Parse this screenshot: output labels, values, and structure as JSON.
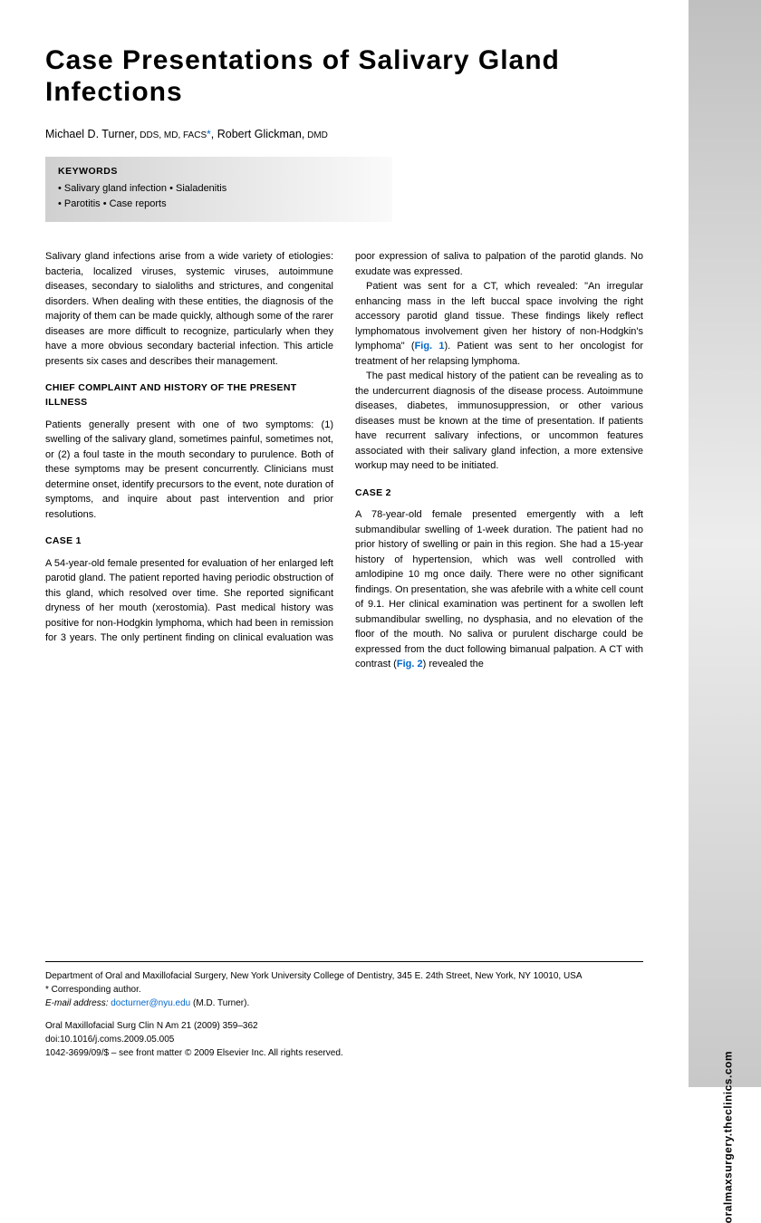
{
  "title": "Case Presentations of Salivary Gland Infections",
  "authors_line": "Michael D. Turner, DDS, MD, FACS*, Robert Glickman, DMD",
  "author1_name": "Michael D. Turner,",
  "author1_suffix": " DDS, MD, FACS",
  "author2_name": ", Robert Glickman,",
  "author2_suffix": " DMD",
  "keywords": {
    "title": "KEYWORDS",
    "line1": "• Salivary gland infection • Sialadenitis",
    "line2": "• Parotitis • Case reports"
  },
  "intro": "Salivary gland infections arise from a wide variety of etiologies: bacteria, localized viruses, systemic viruses, autoimmune diseases, secondary to sialoliths and strictures, and congenital disorders. When dealing with these entities, the diagnosis of the majority of them can be made quickly, although some of the rarer diseases are more difficult to recognize, particularly when they have a more obvious secondary bacterial infection. This article presents six cases and describes their management.",
  "section1_head": "CHIEF COMPLAINT AND HISTORY OF THE PRESENT ILLNESS",
  "section1_p1": "Patients generally present with one of two symptoms: (1) swelling of the salivary gland, sometimes painful, sometimes not, or (2) a foul taste in the mouth secondary to purulence. Both of these symptoms may be present concurrently. Clinicians must determine onset, identify precursors to the event, note duration of symptoms, and inquire about past intervention and prior resolutions.",
  "case1_head": "CASE 1",
  "case1_p1": "A 54-year-old female presented for evaluation of her enlarged left parotid gland. The patient reported having periodic obstruction of this gland, which resolved over time. She reported significant dryness of her mouth (xerostomia). Past medical history was positive for non-Hodgkin lymphoma, which had been in remission for 3 years. The only pertinent finding on clinical evaluation was poor expression of saliva to palpation of the parotid glands. No exudate was expressed.",
  "case1_p2a": "Patient was sent for a CT, which revealed: \"An irregular enhancing mass in the left buccal space involving the right accessory parotid gland tissue. These findings likely reflect lymphomatous involvement given her history of non-Hodgkin's lymphoma\" (",
  "fig1_label": "Fig. 1",
  "case1_p2b": "). Patient was sent to her oncologist for treatment of her relapsing lymphoma.",
  "case1_p3": "The past medical history of the patient can be revealing as to the undercurrent diagnosis of the disease process. Autoimmune diseases, diabetes, immunosuppression, or other various diseases must be known at the time of presentation. If patients have recurrent salivary infections, or uncommon features associated with their salivary gland infection, a more extensive workup may need to be initiated.",
  "case2_head": "CASE 2",
  "case2_p1a": "A 78-year-old female presented emergently with a left submandibular swelling of 1-week duration. The patient had no prior history of swelling or pain in this region. She had a 15-year history of hypertension, which was well controlled with amlodipine 10 mg once daily. There were no other significant findings. On presentation, she was afebrile with a white cell count of 9.1. Her clinical examination was pertinent for a swollen left submandibular swelling, no dysphasia, and no elevation of the floor of the mouth. No saliva or purulent discharge could be expressed from the duct following bimanual palpation. A CT with contrast (",
  "fig2_label": "Fig. 2",
  "case2_p1b": ") revealed the",
  "footer": {
    "dept": "Department of Oral and Maxillofacial Surgery, New York University College of Dentistry, 345 E. 24th Street, New York, NY 10010, USA",
    "corr": "* Corresponding author.",
    "email_label": "E-mail address: ",
    "email": "docturner@nyu.edu",
    "email_suffix": " (M.D. Turner).",
    "journal": "Oral Maxillofacial Surg Clin N Am 21 (2009) 359–362",
    "doi": "doi:10.1016/j.coms.2009.05.005",
    "issn": "1042-3699/09/$ – see front matter © 2009 Elsevier Inc. All rights reserved."
  },
  "sidebar_url": "oralmaxsurgery.theclinics.com"
}
